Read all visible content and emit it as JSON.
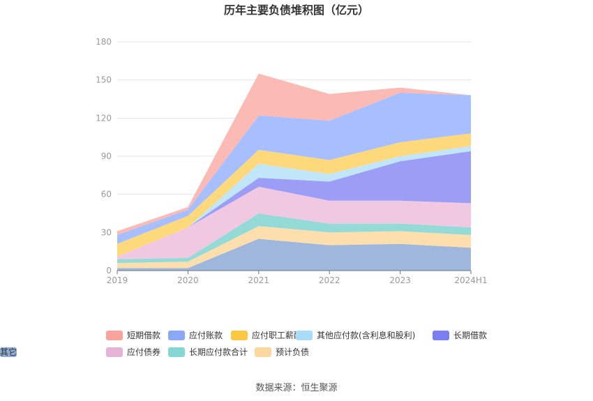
{
  "chart_data": {
    "type": "area",
    "stacked": true,
    "title": "历年主要负债堆积图（亿元）",
    "categories": [
      "2019",
      "2020",
      "2021",
      "2022",
      "2023",
      "2024H1"
    ],
    "ylim": [
      0,
      180
    ],
    "yticks": [
      0,
      30,
      60,
      90,
      120,
      150,
      180
    ],
    "grid": true,
    "legend_position": "bottom",
    "series": [
      {
        "name": "其它",
        "color": "#9fb7dc",
        "values": [
          2,
          2,
          25,
          20,
          21,
          18
        ]
      },
      {
        "name": "预计负债",
        "color": "#fddfae",
        "values": [
          4,
          5,
          10,
          10,
          10,
          10
        ]
      },
      {
        "name": "长期应付款合计",
        "color": "#94dbd7",
        "values": [
          3,
          3,
          10,
          7,
          6,
          6
        ]
      },
      {
        "name": "应付债券",
        "color": "#f1c8e2",
        "values": [
          2,
          24,
          21,
          18,
          18,
          19
        ]
      },
      {
        "name": "长期借款",
        "color": "#9b9ef4",
        "values": [
          0,
          0,
          7,
          15,
          31,
          41
        ]
      },
      {
        "name": "其他应付款(含利息和股利)",
        "color": "#c1e6f9",
        "values": [
          0,
          0,
          11,
          6,
          4,
          4
        ]
      },
      {
        "name": "应付职工薪酬",
        "color": "#fdd97c",
        "values": [
          10,
          9,
          11,
          11,
          11,
          10
        ]
      },
      {
        "name": "应付账款",
        "color": "#a8bfff",
        "values": [
          7,
          5,
          27,
          31,
          39,
          30
        ]
      },
      {
        "name": "短期借款",
        "color": "#fbbab4",
        "values": [
          3,
          2,
          33,
          21,
          4,
          0
        ]
      }
    ],
    "legend_order": [
      "短期借款",
      "应付账款",
      "应付职工薪酬",
      "其他应付款(含利息和股利)",
      "长期借款",
      "应付债券",
      "长期应付款合计",
      "预计负债",
      "其它"
    ],
    "legend_colors": {
      "短期借款": "#f8a39b",
      "应付账款": "#8aa8f5",
      "应付职工薪酬": "#fbc843",
      "其他应付款(含利息和股利)": "#a9ddf7",
      "长期借款": "#7b7ef0",
      "应付债券": "#e6b4d6",
      "长期应付款合计": "#86d7d3",
      "预计负债": "#fdd79f",
      "其它": "#8fabd6"
    }
  },
  "source_text": "数据来源：恒生聚源"
}
